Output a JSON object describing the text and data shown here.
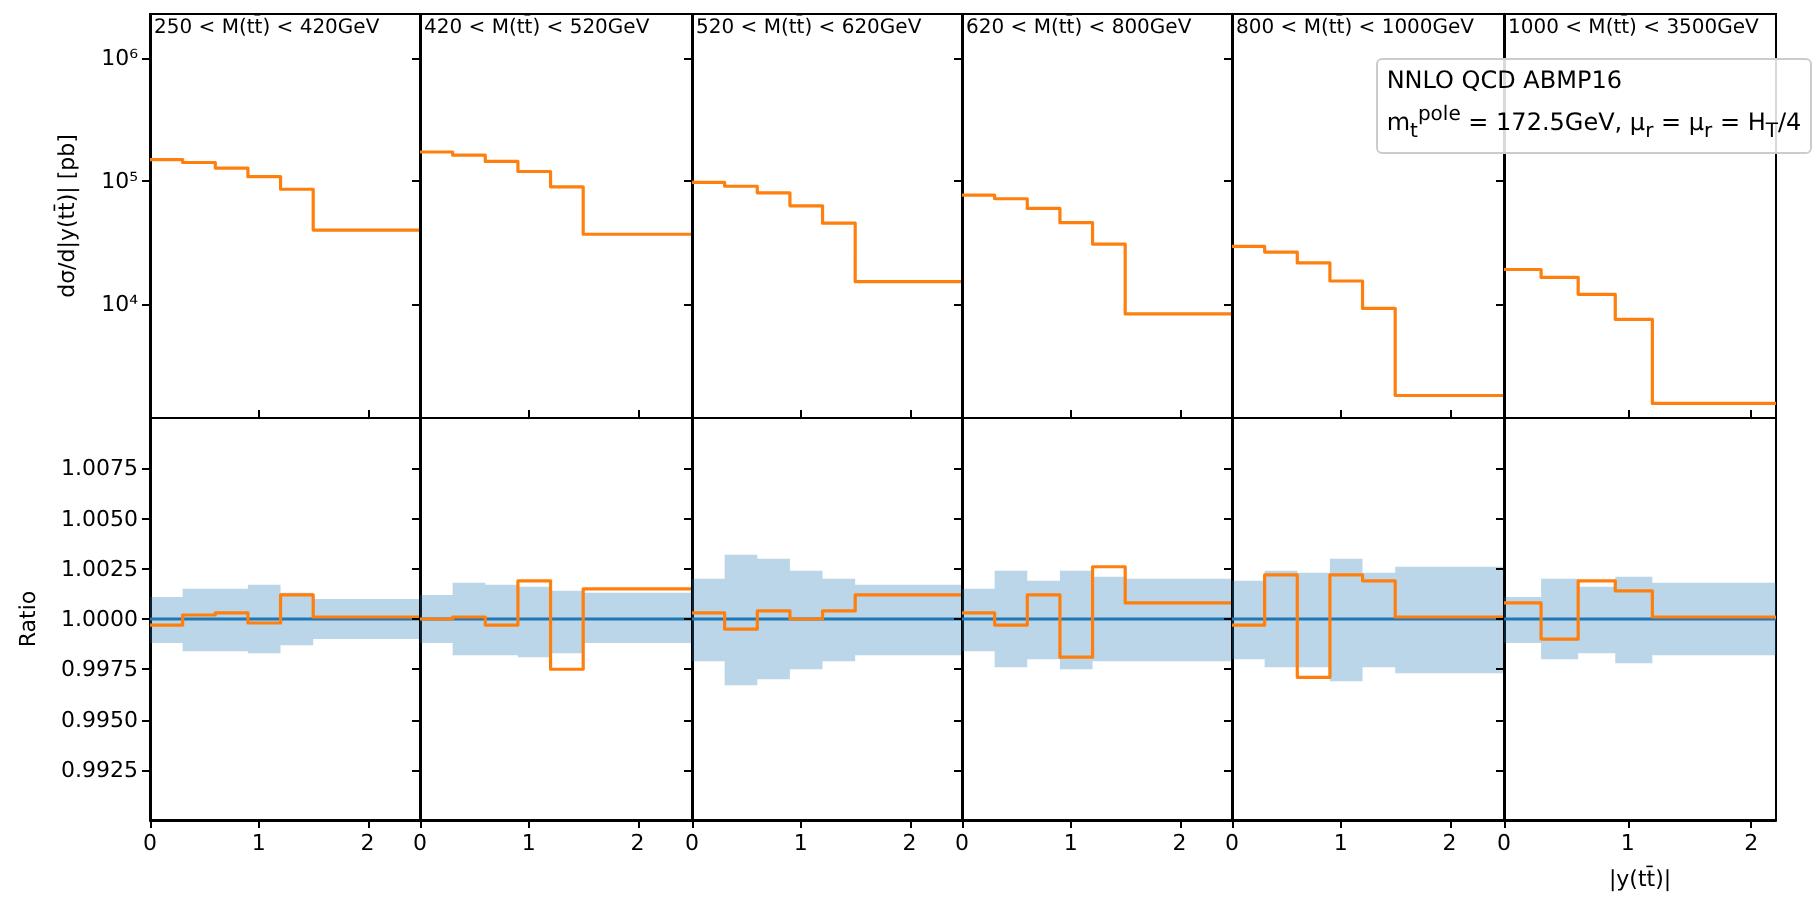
{
  "chart_data": [
    {
      "type": "step",
      "title": "250 < M(tt̄) < 420GeV",
      "ylabel": "dσ/d|y(tt̄)| [pb]",
      "log": true,
      "tick_labels": "y",
      "x": [
        0,
        0.3,
        0.6,
        0.9,
        1.2,
        1.5,
        2.5
      ],
      "xlim": [
        0,
        2.5
      ],
      "xticks": [
        0,
        1,
        2
      ],
      "ylim": [
        1180,
        2300000
      ],
      "yticks": [
        {
          "value": 10000,
          "label": "10⁴"
        },
        {
          "value": 100000,
          "label": "10⁵"
        },
        {
          "value": 1000000,
          "label": "10⁶"
        }
      ],
      "series": [
        {
          "color": "#ff7f0e",
          "values": [
            150000,
            142000,
            128000,
            109000,
            86000,
            40000,
            40000
          ]
        }
      ]
    },
    {
      "type": "step",
      "title": "420 < M(tt̄) < 520GeV",
      "log": true,
      "tick_labels": false,
      "x": [
        0,
        0.3,
        0.6,
        0.9,
        1.2,
        1.5,
        2.5
      ],
      "xlim": [
        0,
        2.5
      ],
      "xticks": [
        0,
        1,
        2
      ],
      "ylim": [
        1180,
        2300000
      ],
      "yticks": [
        10000,
        100000,
        1000000
      ],
      "series": [
        {
          "color": "#ff7f0e",
          "values": [
            173000,
            163000,
            145000,
            120000,
            90000,
            37000,
            37000
          ]
        }
      ]
    },
    {
      "type": "step",
      "title": "520 < M(tt̄) < 620GeV",
      "log": true,
      "tick_labels": false,
      "x": [
        0,
        0.3,
        0.6,
        0.9,
        1.2,
        1.5,
        2.5
      ],
      "xlim": [
        0,
        2.5
      ],
      "xticks": [
        0,
        1,
        2
      ],
      "ylim": [
        1180,
        2300000
      ],
      "yticks": [
        10000,
        100000,
        1000000
      ],
      "series": [
        {
          "color": "#ff7f0e",
          "values": [
            98000,
            91000,
            80500,
            63000,
            45500,
            15200,
            15200
          ]
        }
      ]
    },
    {
      "type": "step",
      "title": "620 < M(tt̄) < 800GeV",
      "log": true,
      "tick_labels": false,
      "x": [
        0,
        0.3,
        0.6,
        0.9,
        1.2,
        1.5,
        2.5
      ],
      "xlim": [
        0,
        2.5
      ],
      "xticks": [
        0,
        1,
        2
      ],
      "ylim": [
        1180,
        2300000
      ],
      "yticks": [
        10000,
        100000,
        1000000
      ],
      "series": [
        {
          "color": "#ff7f0e",
          "values": [
            77000,
            72000,
            60000,
            46000,
            30800,
            8300,
            8300
          ]
        }
      ]
    },
    {
      "type": "step",
      "title": "800 < M(tt̄) < 1000GeV",
      "log": true,
      "tick_labels": false,
      "x": [
        0,
        0.3,
        0.6,
        0.9,
        1.2,
        1.5,
        2.5
      ],
      "xlim": [
        0,
        2.5
      ],
      "xticks": [
        0,
        1,
        2
      ],
      "ylim": [
        1180,
        2300000
      ],
      "yticks": [
        10000,
        100000,
        1000000
      ],
      "annotations": [
        "NNLO QCD ABMP16",
        "m$_{t}$$^{pole}$ = 172.5GeV, μ$_{r}$ = μ$_{r}$ = H$_{T}$/4"
      ],
      "series": [
        {
          "color": "#ff7f0e",
          "values": [
            29500,
            26500,
            21600,
            15400,
            9200,
            1800,
            1800
          ]
        }
      ]
    },
    {
      "type": "step",
      "title": "1000 < M(tt̄) < 3500GeV",
      "log": true,
      "tick_labels": false,
      "x": [
        0,
        0.3,
        0.6,
        0.9,
        1.2,
        2.2
      ],
      "xlim": [
        0,
        2.2
      ],
      "xticks": [
        0,
        1,
        2
      ],
      "ylim": [
        1180,
        2300000
      ],
      "yticks": [
        10000,
        100000,
        1000000
      ],
      "series": [
        {
          "color": "#ff7f0e",
          "values": [
            19100,
            16500,
            12000,
            7500,
            1550,
            1550
          ]
        }
      ]
    },
    {
      "type": "step",
      "ylabel": "Ratio",
      "x": [
        0,
        0.3,
        0.6,
        0.9,
        1.2,
        1.5,
        2.5
      ],
      "xlim": [
        0,
        2.5
      ],
      "xticks": [
        0,
        1,
        2
      ],
      "ylim": [
        0.99,
        1.01
      ],
      "yticks": [
        {
          "value": 0.9925,
          "label": "0.9925"
        },
        {
          "value": 0.995,
          "label": "0.9950"
        },
        {
          "value": 0.9975,
          "label": "0.9975"
        },
        {
          "value": 1,
          "label": "1.0000"
        },
        {
          "value": 1.0025,
          "label": "1.0025"
        },
        {
          "value": 1.005,
          "label": "1.0050"
        },
        {
          "value": 1.0075,
          "label": "1.0075"
        }
      ],
      "series": [
        {
          "color": "#1f77b4",
          "values": [
            1,
            1,
            1,
            1,
            1,
            1,
            1
          ],
          "lower": [
            0.9988,
            0.9984,
            0.9984,
            0.9983,
            0.9987,
            0.999,
            0.999
          ],
          "upper": [
            1.0011,
            1.0015,
            1.0015,
            1.0017,
            1.0013,
            1.001,
            1.001
          ]
        },
        {
          "color": "#ff7f0e",
          "values": [
            0.9997,
            1.0002,
            1.0003,
            0.9998,
            1.0012,
            1.0001,
            1.0001
          ]
        }
      ]
    },
    {
      "type": "step",
      "tick_labels": "x",
      "x": [
        0,
        0.3,
        0.6,
        0.9,
        1.2,
        1.5,
        2.5
      ],
      "xlim": [
        0,
        2.5
      ],
      "xticks": [
        0,
        1,
        2
      ],
      "ylim": [
        0.99,
        1.01
      ],
      "yticks": [
        0.9925,
        0.995,
        0.9975,
        1,
        1.0025,
        1.005,
        1.0075
      ],
      "series": [
        {
          "color": "#1f77b4",
          "values": [
            1,
            1,
            1,
            1,
            1,
            1,
            1
          ],
          "lower": [
            0.9988,
            0.9982,
            0.9982,
            0.9981,
            0.9983,
            0.9988,
            0.9988
          ],
          "upper": [
            1.0012,
            1.0018,
            1.0017,
            1.0016,
            1.0014,
            1.0013,
            1.0013
          ]
        },
        {
          "color": "#ff7f0e",
          "values": [
            1,
            1.0001,
            0.9997,
            1.0019,
            0.9975,
            1.0015,
            1.0015
          ]
        }
      ]
    },
    {
      "type": "step",
      "tick_labels": "x",
      "x": [
        0,
        0.3,
        0.6,
        0.9,
        1.2,
        1.5,
        2.5
      ],
      "xlim": [
        0,
        2.5
      ],
      "xticks": [
        0,
        1,
        2
      ],
      "ylim": [
        0.99,
        1.01
      ],
      "yticks": [
        0.9925,
        0.995,
        0.9975,
        1,
        1.0025,
        1.005,
        1.0075
      ],
      "series": [
        {
          "color": "#1f77b4",
          "values": [
            1,
            1,
            1,
            1,
            1,
            1,
            1
          ],
          "lower": [
            0.9979,
            0.9967,
            0.997,
            0.9975,
            0.9979,
            0.9982,
            0.9982
          ],
          "upper": [
            1.002,
            1.0032,
            1.003,
            1.0024,
            1.002,
            1.0017,
            1.0017
          ]
        },
        {
          "color": "#ff7f0e",
          "values": [
            1.0003,
            0.9995,
            1.0004,
            1,
            1.0004,
            1.0012,
            1.0012
          ]
        }
      ]
    },
    {
      "type": "step",
      "tick_labels": "x",
      "x": [
        0,
        0.3,
        0.6,
        0.9,
        1.2,
        1.5,
        2.5
      ],
      "xlim": [
        0,
        2.5
      ],
      "xticks": [
        0,
        1,
        2
      ],
      "ylim": [
        0.99,
        1.01
      ],
      "yticks": [
        0.9925,
        0.995,
        0.9975,
        1,
        1.0025,
        1.005,
        1.0075
      ],
      "series": [
        {
          "color": "#1f77b4",
          "values": [
            1,
            1,
            1,
            1,
            1,
            1,
            1
          ],
          "lower": [
            0.9984,
            0.9976,
            0.998,
            0.9975,
            0.9979,
            0.9979,
            0.9979
          ],
          "upper": [
            1.0015,
            1.0024,
            1.0019,
            1.0024,
            1.0021,
            1.002,
            1.002
          ]
        },
        {
          "color": "#ff7f0e",
          "values": [
            1.0003,
            0.9997,
            1.0012,
            0.9981,
            1.0026,
            1.0008,
            1.0008
          ]
        }
      ]
    },
    {
      "type": "step",
      "tick_labels": "x",
      "x": [
        0,
        0.3,
        0.6,
        0.9,
        1.2,
        1.5,
        2.5
      ],
      "xlim": [
        0,
        2.5
      ],
      "xticks": [
        0,
        1,
        2
      ],
      "ylim": [
        0.99,
        1.01
      ],
      "yticks": [
        0.9925,
        0.995,
        0.9975,
        1,
        1.0025,
        1.005,
        1.0075
      ],
      "series": [
        {
          "color": "#1f77b4",
          "values": [
            1,
            1,
            1,
            1,
            1,
            1,
            1
          ],
          "lower": [
            0.998,
            0.9976,
            0.9976,
            0.9969,
            0.9976,
            0.9973,
            0.9973
          ],
          "upper": [
            1.0019,
            1.0024,
            1.0023,
            1.003,
            1.0023,
            1.0026,
            1.0026
          ]
        },
        {
          "color": "#ff7f0e",
          "values": [
            0.9997,
            1.0022,
            0.9971,
            1.0022,
            1.0019,
            1.0001,
            1.0001
          ]
        }
      ]
    },
    {
      "type": "step",
      "xlabel": "|y(tt̄)|",
      "tick_labels": "x",
      "x": [
        0,
        0.3,
        0.6,
        0.9,
        1.2,
        2.2
      ],
      "xlim": [
        0,
        2.2
      ],
      "xticks": [
        0,
        1,
        2
      ],
      "ylim": [
        0.99,
        1.01
      ],
      "yticks": [
        0.9925,
        0.995,
        0.9975,
        1,
        1.0025,
        1.005,
        1.0075
      ],
      "series": [
        {
          "color": "#1f77b4",
          "values": [
            1,
            1,
            1,
            1,
            1,
            1
          ],
          "lower": [
            0.9988,
            0.998,
            0.9983,
            0.9978,
            0.9982,
            0.9982
          ],
          "upper": [
            1.0011,
            1.002,
            1.0016,
            1.0021,
            1.0018,
            1.0018
          ]
        },
        {
          "color": "#ff7f0e",
          "values": [
            1.0008,
            0.999,
            1.0019,
            1.0014,
            1.0001,
            1.0001
          ]
        }
      ]
    }
  ]
}
